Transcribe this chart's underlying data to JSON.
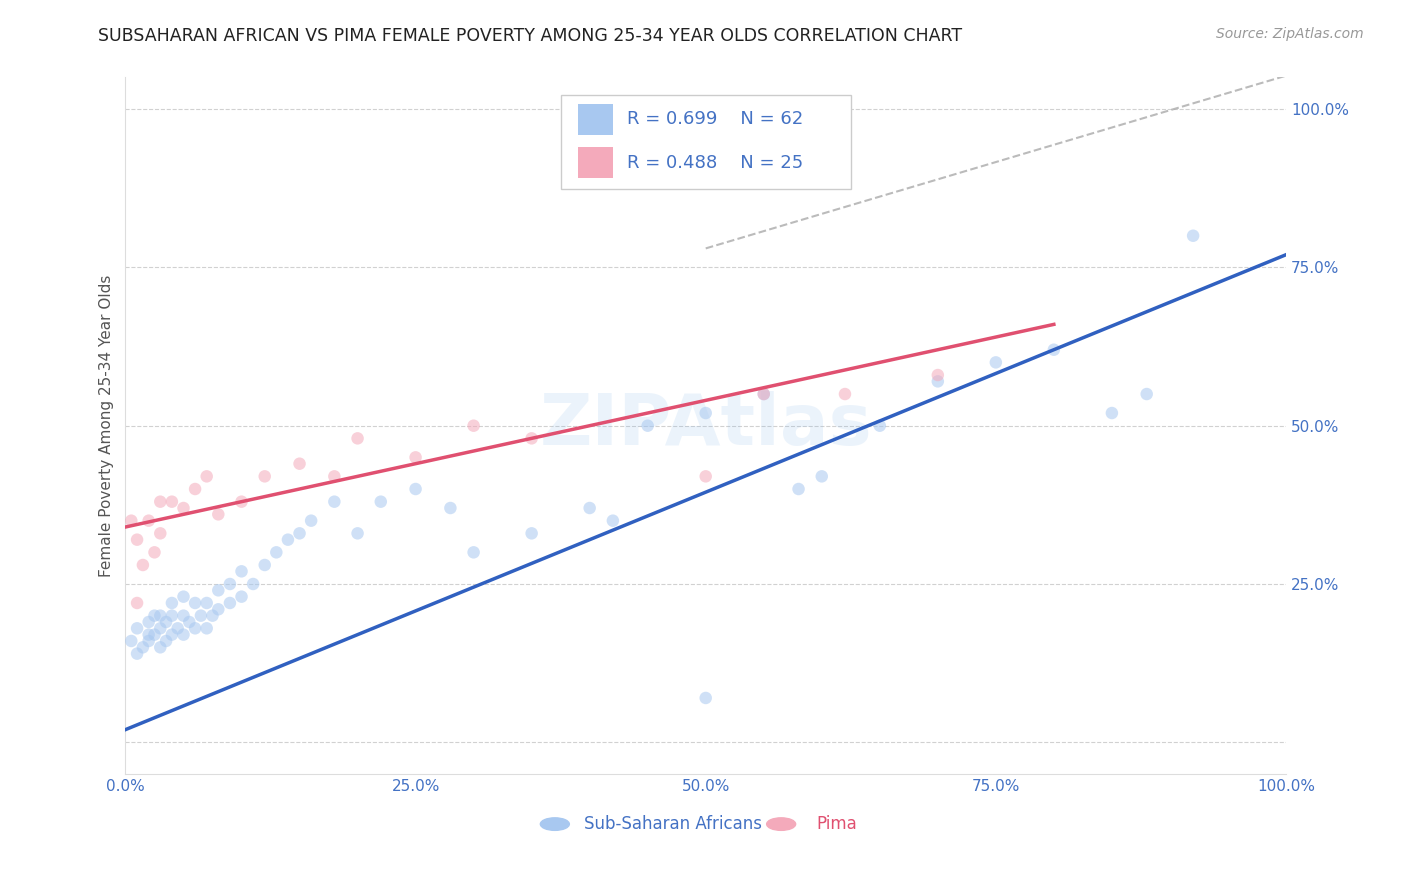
{
  "title": "SUBSAHARAN AFRICAN VS PIMA FEMALE POVERTY AMONG 25-34 YEAR OLDS CORRELATION CHART",
  "source": "Source: ZipAtlas.com",
  "ylabel": "Female Poverty Among 25-34 Year Olds",
  "xlim": [
    0,
    1.0
  ],
  "ylim": [
    -0.05,
    1.05
  ],
  "xticks": [
    0,
    0.25,
    0.5,
    0.75,
    1.0
  ],
  "xticklabels": [
    "0.0%",
    "25.0%",
    "50.0%",
    "75.0%",
    "100.0%"
  ],
  "yticks": [
    0.0,
    0.25,
    0.5,
    0.75,
    1.0
  ],
  "yticklabels": [
    "",
    "25.0%",
    "50.0%",
    "75.0%",
    "100.0%"
  ],
  "blue_color": "#A8C8F0",
  "pink_color": "#F4AABB",
  "blue_line_color": "#3060C0",
  "pink_line_color": "#E05070",
  "ref_line_color": "#AAAAAA",
  "legend_blue_label": "Sub-Saharan Africans",
  "legend_pink_label": "Pima",
  "R_blue": "0.699",
  "N_blue": "62",
  "R_pink": "0.488",
  "N_pink": "25",
  "watermark": "ZIPAtlas",
  "blue_scatter_x": [
    0.005,
    0.01,
    0.01,
    0.015,
    0.02,
    0.02,
    0.02,
    0.025,
    0.025,
    0.03,
    0.03,
    0.03,
    0.035,
    0.035,
    0.04,
    0.04,
    0.04,
    0.045,
    0.05,
    0.05,
    0.05,
    0.055,
    0.06,
    0.06,
    0.065,
    0.07,
    0.07,
    0.075,
    0.08,
    0.08,
    0.09,
    0.09,
    0.1,
    0.1,
    0.11,
    0.12,
    0.13,
    0.14,
    0.15,
    0.16,
    0.18,
    0.2,
    0.22,
    0.25,
    0.28,
    0.3,
    0.35,
    0.4,
    0.42,
    0.45,
    0.5,
    0.55,
    0.58,
    0.6,
    0.65,
    0.7,
    0.75,
    0.8,
    0.85,
    0.88,
    0.92,
    0.5
  ],
  "blue_scatter_y": [
    0.16,
    0.14,
    0.18,
    0.15,
    0.17,
    0.19,
    0.16,
    0.17,
    0.2,
    0.15,
    0.18,
    0.2,
    0.16,
    0.19,
    0.17,
    0.2,
    0.22,
    0.18,
    0.17,
    0.2,
    0.23,
    0.19,
    0.18,
    0.22,
    0.2,
    0.18,
    0.22,
    0.2,
    0.21,
    0.24,
    0.22,
    0.25,
    0.23,
    0.27,
    0.25,
    0.28,
    0.3,
    0.32,
    0.33,
    0.35,
    0.38,
    0.33,
    0.38,
    0.4,
    0.37,
    0.3,
    0.33,
    0.37,
    0.35,
    0.5,
    0.52,
    0.55,
    0.4,
    0.42,
    0.5,
    0.57,
    0.6,
    0.62,
    0.52,
    0.55,
    0.8,
    0.07
  ],
  "pink_scatter_x": [
    0.005,
    0.01,
    0.01,
    0.015,
    0.02,
    0.025,
    0.03,
    0.03,
    0.04,
    0.05,
    0.06,
    0.07,
    0.08,
    0.1,
    0.12,
    0.15,
    0.18,
    0.2,
    0.25,
    0.3,
    0.35,
    0.5,
    0.55,
    0.62,
    0.7
  ],
  "pink_scatter_y": [
    0.35,
    0.22,
    0.32,
    0.28,
    0.35,
    0.3,
    0.38,
    0.33,
    0.38,
    0.37,
    0.4,
    0.42,
    0.36,
    0.38,
    0.42,
    0.44,
    0.42,
    0.48,
    0.45,
    0.5,
    0.48,
    0.42,
    0.55,
    0.55,
    0.58
  ],
  "blue_line_x": [
    0,
    1.0
  ],
  "blue_line_y": [
    0.02,
    0.77
  ],
  "pink_line_x": [
    0,
    0.8
  ],
  "pink_line_y": [
    0.34,
    0.66
  ],
  "ref_line_x": [
    0.5,
    1.05
  ],
  "ref_line_y": [
    0.78,
    1.08
  ],
  "background_color": "#FFFFFF",
  "title_color": "#222222",
  "source_color": "#999999",
  "tick_label_color": "#4472C4",
  "axis_label_color": "#555555",
  "grid_color": "#CCCCCC",
  "legend_text_color": "#4472C4",
  "marker_size": 9,
  "marker_alpha": 0.55,
  "title_fontsize": 12.5,
  "axis_label_fontsize": 11,
  "tick_fontsize": 11,
  "legend_fontsize": 13
}
